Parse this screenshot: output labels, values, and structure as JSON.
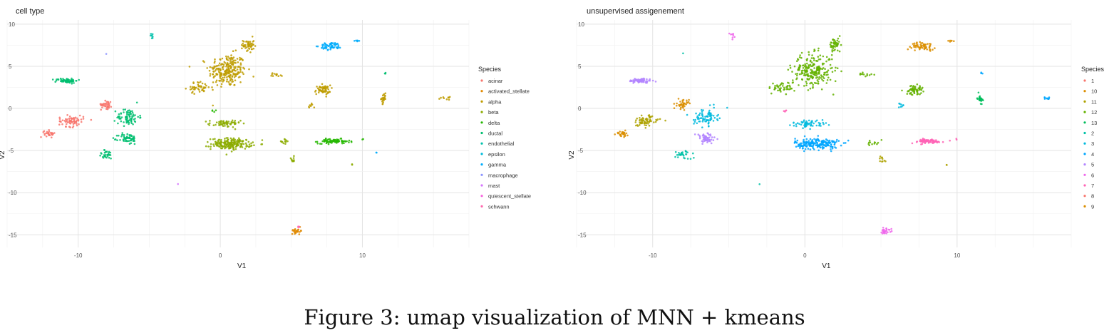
{
  "figure_caption": "Figure 3: umap visualization of MNN + kmeans",
  "chart_data": [
    {
      "type": "scatter",
      "title": "cell type",
      "xlabel": "V1",
      "ylabel": "V2",
      "xlim": [
        -15,
        17.5
      ],
      "ylim": [
        -16.5,
        10.5
      ],
      "xticks": [
        -10,
        0,
        10
      ],
      "yticks": [
        10,
        5,
        0,
        -5,
        -10,
        -15
      ],
      "grid": true,
      "legend": {
        "title": "Species",
        "placement": "right",
        "entries": [
          {
            "name": "acinar",
            "color": "#F8766D"
          },
          {
            "name": "activated_stellate",
            "color": "#E18A00"
          },
          {
            "name": "alpha",
            "color": "#BE9C00"
          },
          {
            "name": "beta",
            "color": "#8CAB00"
          },
          {
            "name": "delta",
            "color": "#24B700"
          },
          {
            "name": "ductal",
            "color": "#00BE70"
          },
          {
            "name": "endothelial",
            "color": "#00C1AB"
          },
          {
            "name": "epsilon",
            "color": "#00BBDA"
          },
          {
            "name": "gamma",
            "color": "#00ACFC"
          },
          {
            "name": "macrophage",
            "color": "#8B93FF"
          },
          {
            "name": "mast",
            "color": "#D575FE"
          },
          {
            "name": "quiescent_stellate",
            "color": "#F962DD"
          },
          {
            "name": "schwann",
            "color": "#FF65AC"
          }
        ]
      },
      "clusters": [
        {
          "cx": 0.5,
          "cy": 4.5,
          "sx": 1.2,
          "sy": 1.8,
          "n": 240,
          "color": "#BE9C00"
        },
        {
          "cx": 2.0,
          "cy": 7.5,
          "sx": 0.35,
          "sy": 0.8,
          "n": 50,
          "color": "#BE9C00"
        },
        {
          "cx": -1.5,
          "cy": 2.5,
          "sx": 0.8,
          "sy": 0.6,
          "n": 45,
          "color": "#BE9C00"
        },
        {
          "cx": 4.0,
          "cy": 4.0,
          "sx": 0.4,
          "sy": 0.2,
          "n": 12,
          "color": "#BE9C00"
        },
        {
          "cx": 7.2,
          "cy": 2.2,
          "sx": 0.5,
          "sy": 0.5,
          "n": 60,
          "color": "#BE9C00"
        },
        {
          "cx": 6.3,
          "cy": 0.3,
          "sx": 0.2,
          "sy": 0.3,
          "n": 8,
          "color": "#BE9C00"
        },
        {
          "cx": 11.5,
          "cy": 1.2,
          "sx": 0.15,
          "sy": 0.5,
          "n": 25,
          "color": "#BE9C00"
        },
        {
          "cx": 15.8,
          "cy": 1.2,
          "sx": 0.3,
          "sy": 0.15,
          "n": 10,
          "color": "#BE9C00"
        },
        {
          "cx": 0.8,
          "cy": -4.2,
          "sx": 1.3,
          "sy": 0.6,
          "n": 200,
          "color": "#8CAB00"
        },
        {
          "cx": 0.3,
          "cy": -1.8,
          "sx": 1.0,
          "sy": 0.4,
          "n": 60,
          "color": "#8CAB00"
        },
        {
          "cx": 4.5,
          "cy": -4.0,
          "sx": 0.4,
          "sy": 0.4,
          "n": 12,
          "color": "#8CAB00"
        },
        {
          "cx": 5.1,
          "cy": -6.0,
          "sx": 0.2,
          "sy": 0.3,
          "n": 10,
          "color": "#8CAB00"
        },
        {
          "cx": 9.3,
          "cy": -6.7,
          "sx": 0.1,
          "sy": 0.1,
          "n": 2,
          "color": "#8CAB00"
        },
        {
          "cx": 8.0,
          "cy": -3.9,
          "sx": 1.0,
          "sy": 0.25,
          "n": 80,
          "color": "#24B700"
        },
        {
          "cx": -0.5,
          "cy": -0.3,
          "sx": 0.2,
          "sy": 0.2,
          "n": 4,
          "color": "#24B700"
        },
        {
          "cx": 10.0,
          "cy": -3.7,
          "sx": 0.1,
          "sy": 0.1,
          "n": 2,
          "color": "#24B700"
        },
        {
          "cx": -10.8,
          "cy": 3.3,
          "sx": 0.7,
          "sy": 0.25,
          "n": 70,
          "color": "#00BE70"
        },
        {
          "cx": -6.5,
          "cy": -1.0,
          "sx": 0.7,
          "sy": 0.9,
          "n": 80,
          "color": "#00BE70"
        },
        {
          "cx": -6.5,
          "cy": -3.6,
          "sx": 0.6,
          "sy": 0.6,
          "n": 60,
          "color": "#00BE70"
        },
        {
          "cx": -8.0,
          "cy": -5.5,
          "sx": 0.5,
          "sy": 0.5,
          "n": 30,
          "color": "#00BE70"
        },
        {
          "cx": 11.6,
          "cy": 4.2,
          "sx": 0.1,
          "sy": 0.1,
          "n": 3,
          "color": "#00BE70"
        },
        {
          "cx": -4.8,
          "cy": 8.6,
          "sx": 0.15,
          "sy": 0.3,
          "n": 8,
          "color": "#00C1AB"
        },
        {
          "cx": 7.8,
          "cy": 7.4,
          "sx": 0.7,
          "sy": 0.4,
          "n": 60,
          "color": "#00ACFC"
        },
        {
          "cx": 9.6,
          "cy": 8.0,
          "sx": 0.2,
          "sy": 0.1,
          "n": 6,
          "color": "#00ACFC"
        },
        {
          "cx": 11.0,
          "cy": -5.2,
          "sx": 0.1,
          "sy": 0.1,
          "n": 2,
          "color": "#00ACFC"
        },
        {
          "cx": -8.0,
          "cy": 0.5,
          "sx": 0.35,
          "sy": 0.5,
          "n": 40,
          "color": "#F8766D"
        },
        {
          "cx": -10.5,
          "cy": -1.5,
          "sx": 0.8,
          "sy": 0.6,
          "n": 70,
          "color": "#F8766D"
        },
        {
          "cx": -12.0,
          "cy": -3.0,
          "sx": 0.35,
          "sy": 0.35,
          "n": 30,
          "color": "#F8766D"
        },
        {
          "cx": 5.4,
          "cy": -14.5,
          "sx": 0.35,
          "sy": 0.3,
          "n": 25,
          "color": "#E18A00"
        },
        {
          "cx": -3.0,
          "cy": -9.0,
          "sx": 0.05,
          "sy": 0.05,
          "n": 1,
          "color": "#D575FE"
        },
        {
          "cx": -8.0,
          "cy": 6.5,
          "sx": 0.05,
          "sy": 0.05,
          "n": 1,
          "color": "#8B93FF"
        },
        {
          "cx": 5.5,
          "cy": -14.0,
          "sx": 0.1,
          "sy": 0.1,
          "n": 3,
          "color": "#FF65AC"
        }
      ]
    },
    {
      "type": "scatter",
      "title": "unsupervised assigenement",
      "xlabel": "V1",
      "ylabel": "V2",
      "xlim": [
        -15,
        17.5
      ],
      "ylim": [
        -16.5,
        10.5
      ],
      "xticks": [
        -10,
        0,
        10
      ],
      "yticks": [
        10,
        5,
        0,
        -5,
        -10,
        -15
      ],
      "grid": true,
      "legend": {
        "title": "Species",
        "placement": "right",
        "entries": [
          {
            "name": "1",
            "color": "#F8766D"
          },
          {
            "name": "10",
            "color": "#DB8E00"
          },
          {
            "name": "11",
            "color": "#AEA200"
          },
          {
            "name": "12",
            "color": "#64B200"
          },
          {
            "name": "13",
            "color": "#00BD5C"
          },
          {
            "name": "2",
            "color": "#00C1A7"
          },
          {
            "name": "3",
            "color": "#00BADE"
          },
          {
            "name": "4",
            "color": "#00A6FF"
          },
          {
            "name": "5",
            "color": "#B385FF"
          },
          {
            "name": "6",
            "color": "#EF67EB"
          },
          {
            "name": "7",
            "color": "#FF63B6"
          },
          {
            "name": "8",
            "color": "#F8766D"
          },
          {
            "name": "9",
            "color": "#DB8E00"
          }
        ]
      },
      "clusters": [
        {
          "cx": 0.5,
          "cy": 4.5,
          "sx": 1.2,
          "sy": 1.8,
          "n": 240,
          "color": "#64B200"
        },
        {
          "cx": 2.0,
          "cy": 7.5,
          "sx": 0.35,
          "sy": 0.8,
          "n": 50,
          "color": "#64B200"
        },
        {
          "cx": -1.5,
          "cy": 2.5,
          "sx": 0.8,
          "sy": 0.6,
          "n": 45,
          "color": "#64B200"
        },
        {
          "cx": 4.0,
          "cy": 4.0,
          "sx": 0.4,
          "sy": 0.2,
          "n": 12,
          "color": "#64B200"
        },
        {
          "cx": 7.2,
          "cy": 2.2,
          "sx": 0.5,
          "sy": 0.5,
          "n": 60,
          "color": "#64B200"
        },
        {
          "cx": 11.5,
          "cy": 1.2,
          "sx": 0.15,
          "sy": 0.5,
          "n": 25,
          "color": "#00BD5C"
        },
        {
          "cx": 16.0,
          "cy": 1.2,
          "sx": 0.3,
          "sy": 0.15,
          "n": 10,
          "color": "#00A6FF"
        },
        {
          "cx": 11.6,
          "cy": 4.2,
          "sx": 0.1,
          "sy": 0.1,
          "n": 3,
          "color": "#00A6FF"
        },
        {
          "cx": 6.3,
          "cy": 0.3,
          "sx": 0.2,
          "sy": 0.3,
          "n": 8,
          "color": "#00BADE"
        },
        {
          "cx": 0.8,
          "cy": -4.2,
          "sx": 1.3,
          "sy": 0.6,
          "n": 200,
          "color": "#00A6FF"
        },
        {
          "cx": 0.3,
          "cy": -1.8,
          "sx": 1.0,
          "sy": 0.4,
          "n": 60,
          "color": "#00BADE"
        },
        {
          "cx": 4.5,
          "cy": -4.0,
          "sx": 0.4,
          "sy": 0.4,
          "n": 12,
          "color": "#64B200"
        },
        {
          "cx": 5.1,
          "cy": -6.0,
          "sx": 0.2,
          "sy": 0.3,
          "n": 10,
          "color": "#AEA200"
        },
        {
          "cx": 9.3,
          "cy": -6.7,
          "sx": 0.1,
          "sy": 0.1,
          "n": 2,
          "color": "#AEA200"
        },
        {
          "cx": 8.0,
          "cy": -3.9,
          "sx": 1.0,
          "sy": 0.25,
          "n": 80,
          "color": "#FF63B6"
        },
        {
          "cx": 10.0,
          "cy": -3.7,
          "sx": 0.1,
          "sy": 0.1,
          "n": 2,
          "color": "#FF63B6"
        },
        {
          "cx": -1.3,
          "cy": -0.3,
          "sx": 0.1,
          "sy": 0.2,
          "n": 4,
          "color": "#FF63B6"
        },
        {
          "cx": 7.8,
          "cy": 7.4,
          "sx": 0.7,
          "sy": 0.4,
          "n": 60,
          "color": "#DB8E00"
        },
        {
          "cx": 9.6,
          "cy": 8.0,
          "sx": 0.2,
          "sy": 0.1,
          "n": 6,
          "color": "#DB8E00"
        },
        {
          "cx": -10.8,
          "cy": 3.3,
          "sx": 0.7,
          "sy": 0.25,
          "n": 70,
          "color": "#B385FF"
        },
        {
          "cx": -6.5,
          "cy": -1.0,
          "sx": 0.7,
          "sy": 0.9,
          "n": 80,
          "color": "#00BADE"
        },
        {
          "cx": -6.5,
          "cy": -3.6,
          "sx": 0.6,
          "sy": 0.6,
          "n": 60,
          "color": "#B385FF"
        },
        {
          "cx": -8.0,
          "cy": -5.5,
          "sx": 0.5,
          "sy": 0.5,
          "n": 30,
          "color": "#00C1A7"
        },
        {
          "cx": -8.0,
          "cy": 0.5,
          "sx": 0.35,
          "sy": 0.5,
          "n": 40,
          "color": "#DB8E00"
        },
        {
          "cx": -10.5,
          "cy": -1.5,
          "sx": 0.8,
          "sy": 0.6,
          "n": 70,
          "color": "#AEA200"
        },
        {
          "cx": -12.0,
          "cy": -3.0,
          "sx": 0.35,
          "sy": 0.35,
          "n": 30,
          "color": "#DB8E00"
        },
        {
          "cx": -4.8,
          "cy": 8.6,
          "sx": 0.15,
          "sy": 0.3,
          "n": 8,
          "color": "#EF67EB"
        },
        {
          "cx": -8.0,
          "cy": 6.5,
          "sx": 0.05,
          "sy": 0.05,
          "n": 1,
          "color": "#00C1A7"
        },
        {
          "cx": 5.3,
          "cy": -14.5,
          "sx": 0.35,
          "sy": 0.3,
          "n": 28,
          "color": "#EF67EB"
        },
        {
          "cx": -3.0,
          "cy": -9.0,
          "sx": 0.05,
          "sy": 0.05,
          "n": 1,
          "color": "#00C1A7"
        }
      ]
    }
  ]
}
